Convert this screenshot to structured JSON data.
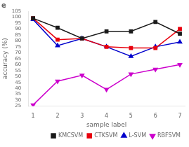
{
  "chart_data": {
    "type": "line",
    "x": [
      1,
      2,
      3,
      4,
      5,
      6,
      7
    ],
    "series": [
      {
        "name": "KMCSVM",
        "color": "#1a1a1a",
        "marker": "square",
        "values": [
          99,
          91,
          82,
          88,
          88,
          96,
          86
        ]
      },
      {
        "name": "CTKSVM",
        "color": "#e8000d",
        "marker": "square",
        "values": [
          99,
          81,
          82,
          75,
          74,
          74,
          90
        ]
      },
      {
        "name": "L-SVM",
        "color": "#0000cc",
        "marker": "triangle-up",
        "values": [
          98,
          76,
          82,
          75,
          67,
          75,
          79
        ]
      },
      {
        "name": "RBFSVM",
        "color": "#cc00cc",
        "marker": "triangle-down",
        "values": [
          26,
          46,
          51,
          39,
          52,
          56,
          60
        ]
      }
    ],
    "xlabel": "sample label",
    "ylabel": "accuracy (%)",
    "xlim": [
      0.8,
      7.2
    ],
    "xticks": [
      1,
      2,
      3,
      4,
      5,
      6,
      7
    ],
    "ylim": [
      25,
      105
    ],
    "yticks": [
      25,
      30,
      35,
      40,
      45,
      50,
      55,
      60,
      65,
      70,
      75,
      80,
      85,
      90,
      95,
      100,
      105
    ],
    "annotations": [
      {
        "text": "e"
      }
    ],
    "legend": "lower right",
    "grid": false
  }
}
